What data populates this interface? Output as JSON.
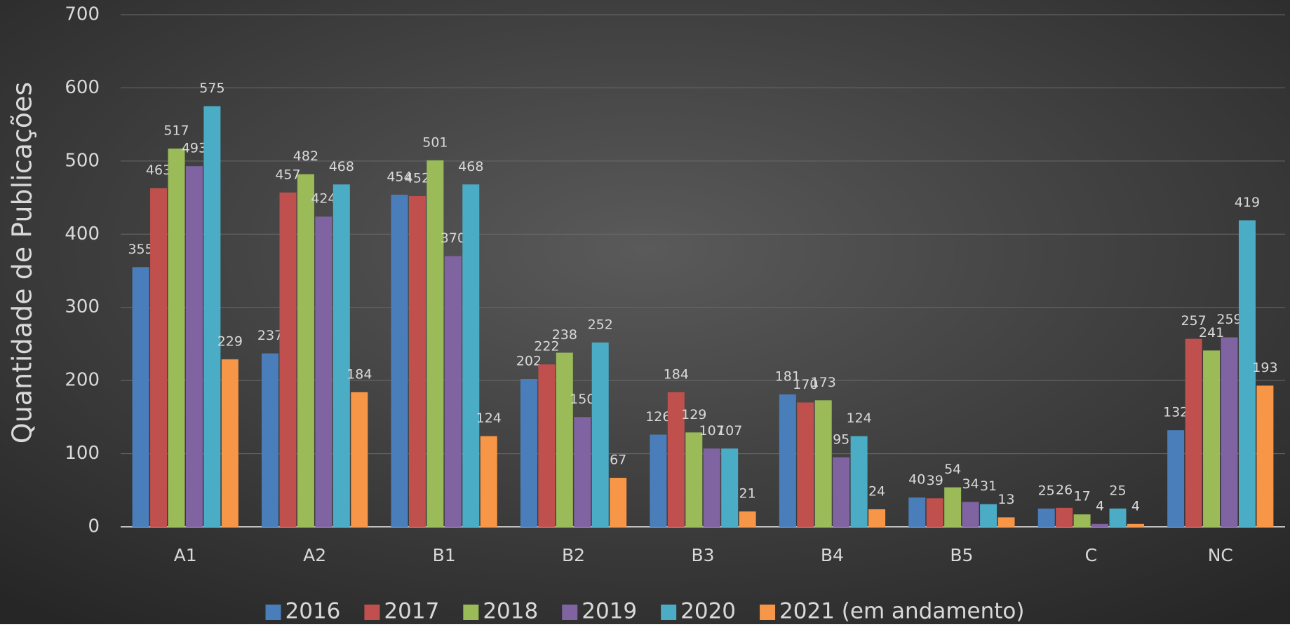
{
  "chart_data": {
    "type": "bar",
    "y_label": "Quantidade de Publicações",
    "categories": [
      "A1",
      "A2",
      "B1",
      "B2",
      "B3",
      "B4",
      "B5",
      "C",
      "NC"
    ],
    "series": [
      {
        "name": "2016",
        "color": "#4a7ebb",
        "values": [
          355,
          237,
          454,
          202,
          126,
          181,
          40,
          25,
          132
        ]
      },
      {
        "name": "2017",
        "color": "#c0504d",
        "values": [
          463,
          457,
          452,
          222,
          184,
          170,
          39,
          26,
          257
        ]
      },
      {
        "name": "2018",
        "color": "#9bbb59",
        "values": [
          517,
          482,
          501,
          238,
          129,
          173,
          54,
          17,
          241
        ]
      },
      {
        "name": "2019",
        "color": "#8064a2",
        "values": [
          493,
          424,
          370,
          150,
          107,
          95,
          34,
          4,
          259
        ]
      },
      {
        "name": "2020",
        "color": "#4bacc6",
        "values": [
          575,
          468,
          468,
          252,
          107,
          124,
          31,
          25,
          419
        ]
      },
      {
        "name": "2021 (em andamento)",
        "color": "#f79646",
        "values": [
          229,
          184,
          124,
          67,
          21,
          24,
          13,
          4,
          193
        ]
      }
    ],
    "ylim": [
      0,
      700
    ],
    "yticks": [
      0,
      100,
      200,
      300,
      400,
      500,
      600,
      700
    ],
    "grid": true,
    "legend": "bottom"
  }
}
